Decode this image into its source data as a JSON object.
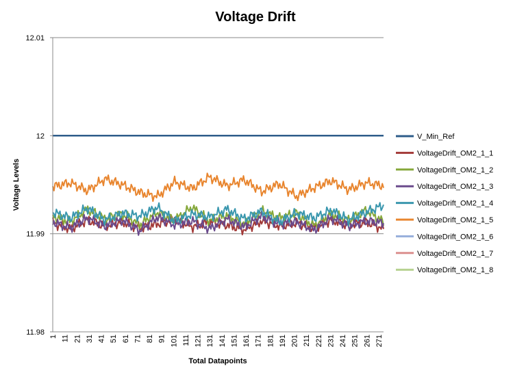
{
  "chart_data": {
    "type": "line",
    "title": "Voltage Drift",
    "xlabel": "Total Datapoints",
    "ylabel": "Voltage Levels",
    "ylim": [
      11.98,
      12.01
    ],
    "y_ticks": [
      "11.98",
      "11.99",
      "12",
      "12.01"
    ],
    "y_tick_values": [
      11.98,
      11.99,
      12.0,
      12.01
    ],
    "x_range": [
      1,
      275
    ],
    "x_ticks": [
      1,
      11,
      21,
      31,
      41,
      51,
      61,
      71,
      81,
      91,
      101,
      111,
      121,
      131,
      141,
      151,
      161,
      171,
      181,
      191,
      201,
      211,
      221,
      231,
      241,
      251,
      261,
      271
    ],
    "grid": "horizontal",
    "legend": "right",
    "series": [
      {
        "name": "V_Min_Ref",
        "color": "#2E5C8A",
        "values": [
          12.0,
          12.0
        ]
      },
      {
        "name": "VoltageDrift_OM2_1_1",
        "color": "#A33A38",
        "values": [
          11.9911,
          11.9905,
          11.9914,
          11.9908,
          11.9912,
          11.9906,
          11.991,
          11.9915,
          11.9907,
          11.9912,
          11.9909,
          11.9904,
          11.9913,
          11.9908,
          11.9911,
          11.9906,
          11.9914,
          11.9909,
          11.9912,
          11.9905
        ]
      },
      {
        "name": "VoltageDrift_OM2_1_2",
        "color": "#86A83A",
        "values": [
          11.9918,
          11.9912,
          11.9925,
          11.9915,
          11.992,
          11.9909,
          11.9922,
          11.9914,
          11.9927,
          11.9913,
          11.9919,
          11.991,
          11.9923,
          11.9916,
          11.9921,
          11.9908,
          11.992,
          11.9914,
          11.9924,
          11.9912
        ]
      },
      {
        "name": "VoltageDrift_OM2_1_3",
        "color": "#6A4A8C",
        "values": [
          11.9912,
          11.9906,
          11.9916,
          11.9908,
          11.9914,
          11.9903,
          11.9917,
          11.9909,
          11.9913,
          11.9905,
          11.9915,
          11.9907,
          11.9918,
          11.991,
          11.9912,
          11.9904,
          11.9916,
          11.9908,
          11.9913,
          11.9911
        ]
      },
      {
        "name": "VoltageDrift_OM2_1_4",
        "color": "#3A97AE",
        "values": [
          11.9922,
          11.9916,
          11.9926,
          11.9914,
          11.9921,
          11.9918,
          11.9927,
          11.9913,
          11.992,
          11.9917,
          11.9925,
          11.9915,
          11.9923,
          11.9912,
          11.9921,
          11.9916,
          11.9924,
          11.9914,
          11.9922,
          11.9929
        ]
      },
      {
        "name": "VoltageDrift_OM2_1_5",
        "color": "#E8852E",
        "values": [
          11.9948,
          11.9952,
          11.9944,
          11.9956,
          11.995,
          11.9942,
          11.9938,
          11.9953,
          11.9946,
          11.9958,
          11.9949,
          11.9955,
          11.9943,
          11.9951,
          11.9938,
          11.9947,
          11.9954,
          11.9945,
          11.9952,
          11.9949
        ]
      },
      {
        "name": "VoltageDrift_OM2_1_6",
        "color": "#96AEDB",
        "values": []
      },
      {
        "name": "VoltageDrift_OM2_1_7",
        "color": "#DB8F8E",
        "values": []
      },
      {
        "name": "VoltageDrift_OM2_1_8",
        "color": "#B5D18F",
        "values": []
      }
    ]
  }
}
